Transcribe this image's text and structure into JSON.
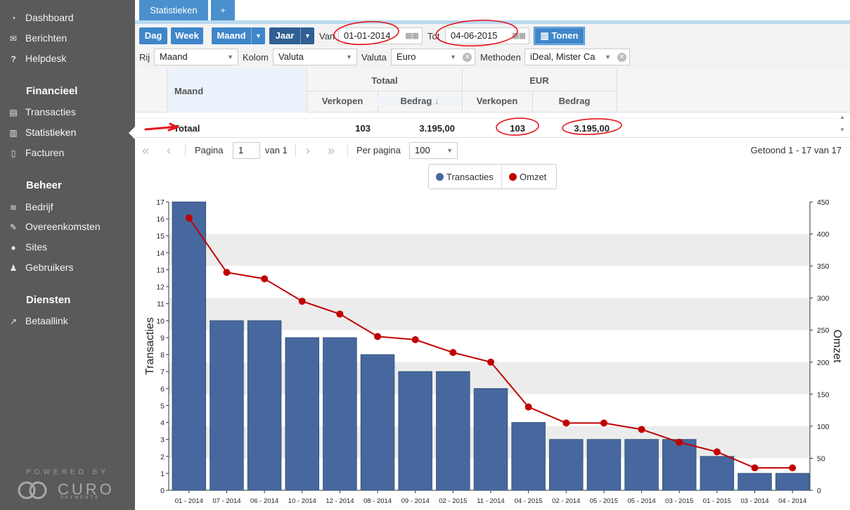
{
  "sidebar": {
    "items": [
      {
        "label": "Dashboard",
        "icon": "dashboard-icon",
        "glyph": "◔"
      },
      {
        "label": "Berichten",
        "icon": "envelope-icon",
        "glyph": "✉"
      },
      {
        "label": "Helpdesk",
        "icon": "question-icon",
        "glyph": "?"
      }
    ],
    "financieel": {
      "title": "Financieel",
      "items": [
        {
          "label": "Transacties",
          "icon": "list-icon",
          "glyph": "▤"
        },
        {
          "label": "Statistieken",
          "icon": "bar-chart-icon",
          "glyph": "▥"
        },
        {
          "label": "Facturen",
          "icon": "document-icon",
          "glyph": "▯"
        }
      ]
    },
    "beheer": {
      "title": "Beheer",
      "items": [
        {
          "label": "Bedrijf",
          "icon": "database-icon",
          "glyph": "≋"
        },
        {
          "label": "Overeenkomsten",
          "icon": "edit-icon",
          "glyph": "✎"
        },
        {
          "label": "Sites",
          "icon": "globe-icon",
          "glyph": "●"
        },
        {
          "label": "Gebruikers",
          "icon": "user-icon",
          "glyph": "♟"
        }
      ]
    },
    "diensten": {
      "title": "Diensten",
      "items": [
        {
          "label": "Betaallink",
          "icon": "external-link-icon",
          "glyph": "↗"
        }
      ]
    },
    "powered_by": "POWERED BY",
    "logo_text": "CURO",
    "logo_sub": "PAYMENTS"
  },
  "tabs": {
    "active": "Statistieken",
    "add": "+"
  },
  "toolbar": {
    "period_buttons": [
      "Dag",
      "Week",
      "Maand",
      "Jaar"
    ],
    "van_label": "Van",
    "van_value": "01-01-2014",
    "tot_label": "Tot",
    "tot_value": "04-06-2015",
    "tonen_label": "Tonen",
    "rij_label": "Rij",
    "rij_value": "Maand",
    "kolom_label": "Kolom",
    "kolom_value": "Valuta",
    "valuta_label": "Valuta",
    "valuta_value": "Euro",
    "methoden_label": "Methoden",
    "methoden_value": "iDeal, Mister Ca"
  },
  "grid": {
    "maand_header": "Maand",
    "totaal_header": "Totaal",
    "eur_header": "EUR",
    "verkopen_header": "Verkopen",
    "bedrag_header": "Bedrag",
    "sort_indicator": "↓",
    "total_row": {
      "label": "Totaal",
      "totaal_verkopen": "103",
      "totaal_bedrag": "3.195,00",
      "eur_verkopen": "103",
      "eur_bedrag": "3.195,00"
    }
  },
  "pager": {
    "pagina_label": "Pagina",
    "page_value": "1",
    "van_label": "van 1",
    "per_pagina_label": "Per pagina",
    "per_pagina_value": "100",
    "status": "Getoond 1 - 17 van 17"
  },
  "colors": {
    "bar": "#46689e",
    "line": "#c00000",
    "accent": "#3f86c9",
    "annotation": "#e8141c"
  },
  "chart_data": {
    "type": "bar",
    "categories": [
      "01 - 2014",
      "07 - 2014",
      "06 - 2014",
      "10 - 2014",
      "12 - 2014",
      "08 - 2014",
      "09 - 2014",
      "02 - 2015",
      "11 - 2014",
      "04 - 2015",
      "02 - 2014",
      "05 - 2015",
      "05 - 2014",
      "03 - 2015",
      "01 - 2015",
      "03 - 2014",
      "04 - 2014"
    ],
    "series": [
      {
        "name": "Transacties",
        "type": "bar",
        "axis": "left",
        "values": [
          17,
          10,
          10,
          9,
          9,
          8,
          7,
          7,
          6,
          4,
          3,
          3,
          3,
          3,
          2,
          1,
          1
        ]
      },
      {
        "name": "Omzet",
        "type": "line",
        "axis": "right",
        "values": [
          425,
          340,
          330,
          295,
          275,
          240,
          235,
          215,
          200,
          130,
          105,
          105,
          95,
          75,
          60,
          35,
          35
        ]
      }
    ],
    "ylabel": "Transacties",
    "y2label": "Omzet",
    "ylim": [
      0,
      17
    ],
    "y2lim": [
      0,
      450
    ],
    "yticks": [
      0,
      1,
      2,
      3,
      4,
      5,
      6,
      7,
      8,
      9,
      10,
      11,
      12,
      13,
      14,
      15,
      16,
      17
    ],
    "y2ticks": [
      0,
      50,
      100,
      150,
      200,
      250,
      300,
      350,
      400,
      450
    ],
    "legend": "top-center",
    "grid": true
  }
}
